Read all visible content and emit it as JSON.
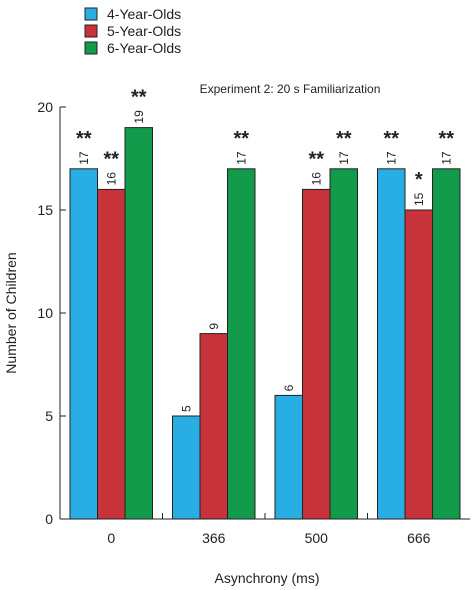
{
  "chart_data": {
    "type": "bar",
    "title": "",
    "subtitle": "Experiment 2: 20 s Familiarization",
    "xlabel": "Asynchrony (ms)",
    "ylabel": "Number of Children",
    "ylim": [
      0,
      20
    ],
    "yticks": [
      0,
      5,
      10,
      15,
      20
    ],
    "categories": [
      "0",
      "366",
      "500",
      "666"
    ],
    "legend_position": "top-left",
    "grid": false,
    "series": [
      {
        "name": "4-Year-Olds",
        "color": "#29aee3",
        "values": [
          17,
          5,
          6,
          17
        ],
        "labels": [
          "17",
          "5",
          "6",
          "17"
        ],
        "significance": [
          "**",
          "",
          "",
          "**"
        ]
      },
      {
        "name": "5-Year-Olds",
        "color": "#c8323a",
        "values": [
          16,
          9,
          16,
          15
        ],
        "labels": [
          "16",
          "9",
          "16",
          "15"
        ],
        "significance": [
          "**",
          "",
          "**",
          "*"
        ]
      },
      {
        "name": "6-Year-Olds",
        "color": "#119a4a",
        "values": [
          19,
          17,
          17,
          17
        ],
        "labels": [
          "19",
          "17",
          "17",
          "17"
        ],
        "significance": [
          "**",
          "**",
          "**",
          "**"
        ]
      }
    ]
  }
}
